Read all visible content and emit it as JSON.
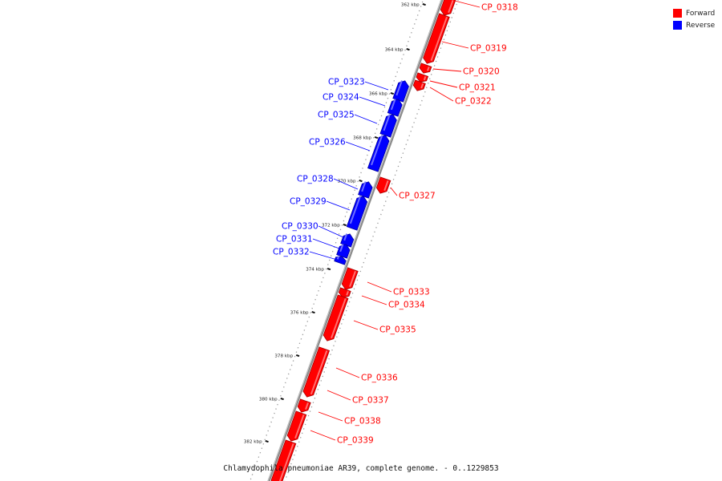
{
  "legend": {
    "items": [
      {
        "label": "Forward",
        "color": "#ff0000"
      },
      {
        "label": "Reverse",
        "color": "#0000ff"
      }
    ]
  },
  "caption": "Chlamydophila pneumoniae AR39, complete genome. - 0..1229853",
  "colors": {
    "forward": "#ff0000",
    "reverse": "#0000ff",
    "backbone": "#777777"
  },
  "ticks": [
    "362 kbp",
    "364 kbp",
    "366 kbp",
    "368 kbp",
    "370 kbp",
    "372 kbp",
    "374 kbp",
    "376 kbp",
    "378 kbp",
    "380 kbp",
    "382 kbp"
  ],
  "genes": [
    {
      "name": "CP_0318",
      "strand": "forward"
    },
    {
      "name": "CP_0319",
      "strand": "forward"
    },
    {
      "name": "CP_0320",
      "strand": "forward"
    },
    {
      "name": "CP_0321",
      "strand": "forward"
    },
    {
      "name": "CP_0322",
      "strand": "forward"
    },
    {
      "name": "CP_0323",
      "strand": "reverse"
    },
    {
      "name": "CP_0324",
      "strand": "reverse"
    },
    {
      "name": "CP_0325",
      "strand": "reverse"
    },
    {
      "name": "CP_0326",
      "strand": "reverse"
    },
    {
      "name": "CP_0327",
      "strand": "forward"
    },
    {
      "name": "CP_0328",
      "strand": "reverse"
    },
    {
      "name": "CP_0329",
      "strand": "reverse"
    },
    {
      "name": "CP_0330",
      "strand": "reverse"
    },
    {
      "name": "CP_0331",
      "strand": "reverse"
    },
    {
      "name": "CP_0332",
      "strand": "reverse"
    },
    {
      "name": "CP_0333",
      "strand": "forward"
    },
    {
      "name": "CP_0334",
      "strand": "forward"
    },
    {
      "name": "CP_0335",
      "strand": "forward"
    },
    {
      "name": "CP_0336",
      "strand": "forward"
    },
    {
      "name": "CP_0337",
      "strand": "forward"
    },
    {
      "name": "CP_0338",
      "strand": "forward"
    },
    {
      "name": "CP_0339",
      "strand": "forward"
    }
  ]
}
